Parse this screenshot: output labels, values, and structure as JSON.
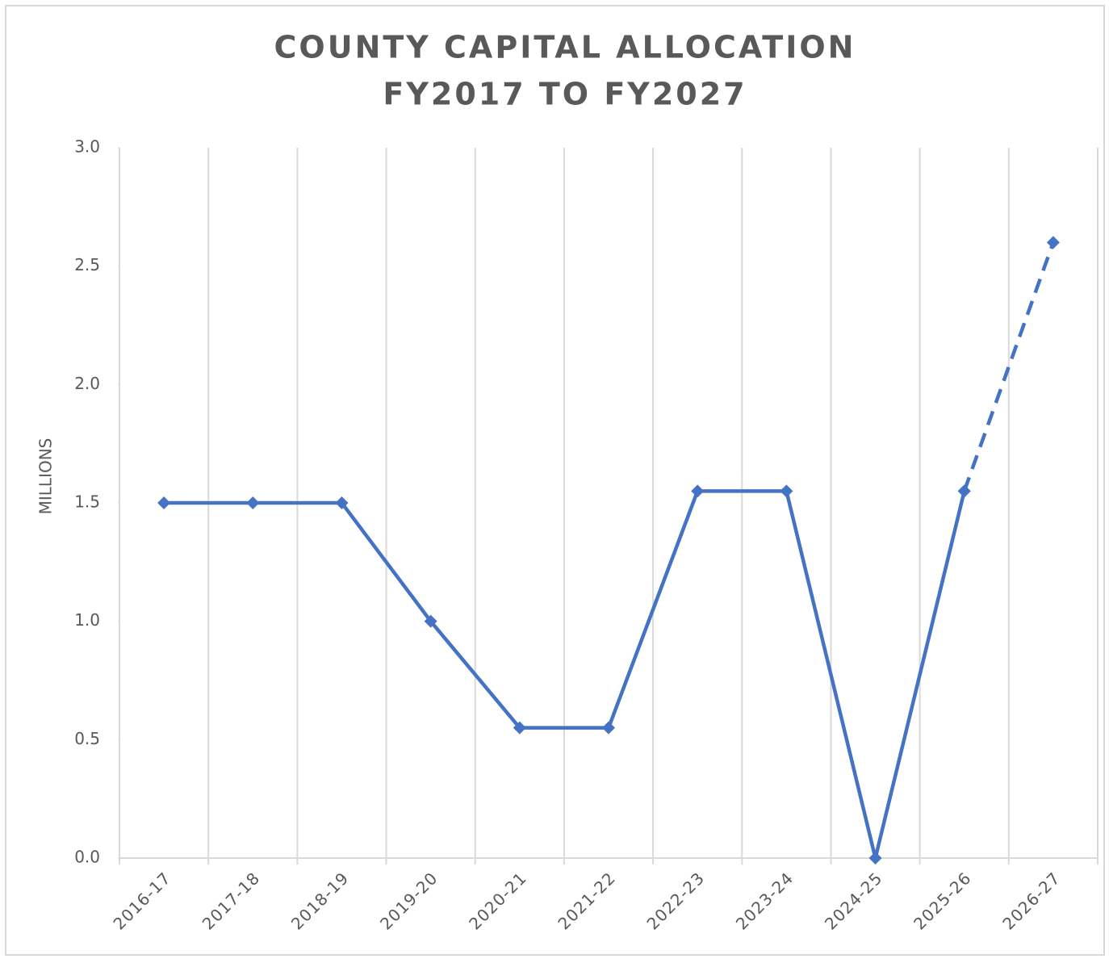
{
  "chart_data": {
    "type": "line",
    "title": "COUNTY CAPITAL ALLOCATION",
    "subtitle": "FY2017 TO FY2027",
    "y_label": "MILLIONS",
    "categories": [
      "2016-17",
      "2017-18",
      "2018-19",
      "2019-20",
      "2020-21",
      "2021-22",
      "2022-23",
      "2023-24",
      "2024-25",
      "2025-26",
      "2026-27"
    ],
    "series": [
      {
        "color": "#4472c4",
        "line_style": "solid",
        "values": [
          1.5,
          1.5,
          1.5,
          1.0,
          0.55,
          0.55,
          1.55,
          1.55,
          0.0,
          1.55,
          null
        ]
      },
      {
        "color": "#4472c4",
        "line_style": "dashed",
        "values": [
          null,
          null,
          null,
          null,
          null,
          null,
          null,
          null,
          null,
          1.55,
          2.6
        ]
      }
    ],
    "ylim": [
      0,
      3
    ],
    "yticks": [
      {
        "value": 0,
        "label": "0.0"
      },
      0.5,
      {
        "value": 1,
        "label": "1.0"
      },
      1.5,
      {
        "value": 2,
        "label": "2.0"
      },
      2.5,
      {
        "value": 3,
        "label": "3.0"
      }
    ],
    "grid": "vertical-between-categories",
    "marker": "diamond"
  }
}
